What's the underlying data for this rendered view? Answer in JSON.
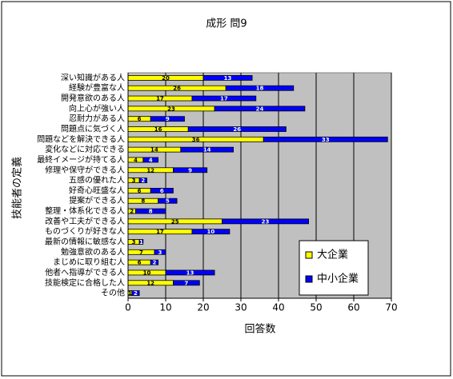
{
  "chart_data": {
    "type": "stacked-bar-horizontal",
    "title": "成形  問9",
    "x_label": "回答数",
    "y_label": "技能者の定義",
    "categories": [
      "深い知識がある人",
      "経験が豊富な人",
      "開発意欲のある人",
      "向上心が強い人",
      "忍耐力がある人",
      "問題点に気づく人",
      "問題などを解決できる人",
      "変化などに対応できる",
      "最終イメージが持てる人",
      "修理や保守ができる人",
      "五感の優れた人",
      "好奇心旺盛な人",
      "提案ができる人",
      "整理・体系化できる人",
      "改善や工夫ができる人",
      "ものづくりが好きな人",
      "最新の情報に敏感な人",
      "勉強意欲のある人",
      "まじめに取り組む人",
      "他者へ指導ができる人",
      "技能検定に合格した人",
      "その他"
    ],
    "series": [
      {
        "name": "大企業",
        "color": "#ffff00",
        "values": [
          20,
          26,
          17,
          23,
          6,
          16,
          36,
          14,
          4,
          12,
          3,
          6,
          8,
          2,
          25,
          17,
          3,
          7,
          6,
          10,
          12,
          1
        ]
      },
      {
        "name": "中小企業",
        "color": "#0000ff",
        "values": [
          13,
          18,
          17,
          24,
          9,
          26,
          33,
          14,
          4,
          9,
          2,
          6,
          5,
          8,
          23,
          10,
          1,
          3,
          2,
          13,
          7,
          2
        ]
      }
    ],
    "xlim": [
      0,
      70
    ],
    "xticks": [
      0,
      10,
      20,
      30,
      40,
      50,
      60,
      70
    ],
    "grid": true,
    "legend": "bottom-right"
  }
}
